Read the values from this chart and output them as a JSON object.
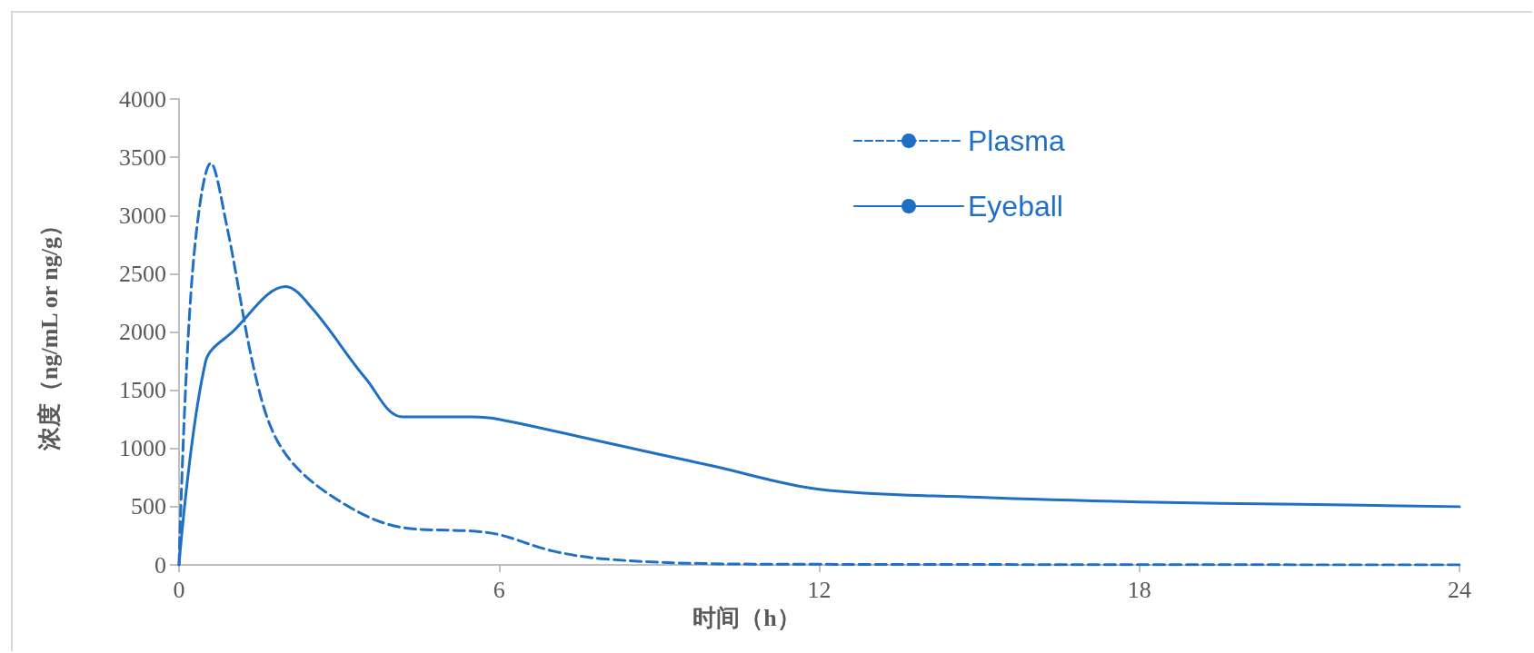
{
  "chart_data": {
    "type": "line",
    "xlabel": "时间（h）",
    "ylabel": "浓度（ng/mL or ng/g）",
    "xlim": [
      0,
      24
    ],
    "xticks": [
      0,
      6,
      12,
      18,
      24
    ],
    "ylim": [
      0,
      4000
    ],
    "yticks": [
      0,
      500,
      1000,
      1500,
      2000,
      2500,
      3000,
      3500,
      4000
    ],
    "grid": false,
    "legend": "top right",
    "marker": "none",
    "series": [
      {
        "name": "Plasma",
        "color": "#1f6fc5",
        "line_style": "dashed",
        "x": [
          0,
          0.25,
          0.6,
          0.9,
          1.5,
          2,
          3,
          4.2,
          5.5,
          6,
          7,
          8,
          10,
          12,
          24
        ],
        "values": [
          0,
          2500,
          3450,
          2900,
          1500,
          950,
          550,
          320,
          290,
          260,
          120,
          50,
          10,
          5,
          0
        ]
      },
      {
        "name": "Eyeball",
        "color": "#1f6fc5",
        "line_style": "solid",
        "x": [
          0,
          0.5,
          1,
          2,
          2.5,
          3.5,
          4.2,
          5.5,
          6,
          8,
          10,
          12,
          15,
          18,
          21,
          24
        ],
        "values": [
          0,
          1750,
          2000,
          2390,
          2200,
          1600,
          1270,
          1270,
          1250,
          1050,
          850,
          650,
          580,
          540,
          520,
          500
        ]
      }
    ]
  }
}
